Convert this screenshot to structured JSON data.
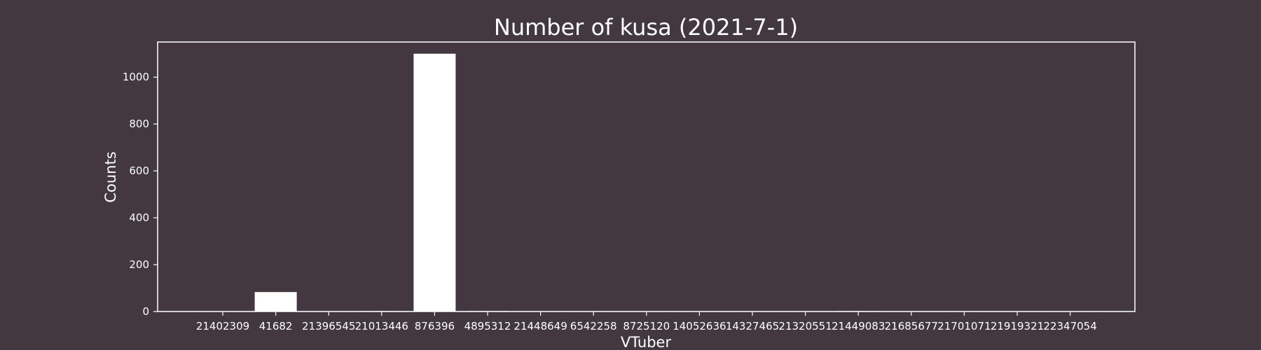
{
  "chart_data": {
    "type": "bar",
    "title": "Number of kusa (2021-7-1)",
    "xlabel": "VTuber",
    "ylabel": "Counts",
    "ylim": [
      0,
      1150
    ],
    "yticks": [
      0,
      200,
      400,
      600,
      800,
      1000
    ],
    "grid": false,
    "categories": [
      "21402309",
      "41682",
      "21396545",
      "21013446",
      "876396",
      "4895312",
      "21448649",
      "6542258",
      "8725120",
      "14052636",
      "14327465",
      "21320551",
      "21449083",
      "21685677",
      "21701071",
      "21919321",
      "22347054"
    ],
    "values": [
      0,
      83,
      0,
      2,
      1100,
      2,
      0,
      0,
      0,
      0,
      0,
      0,
      2,
      0,
      0,
      0,
      0
    ],
    "colors": {
      "background": "#433840",
      "bar": "#ffffff",
      "axes": "#ffffff",
      "text": "#ffffff"
    }
  }
}
